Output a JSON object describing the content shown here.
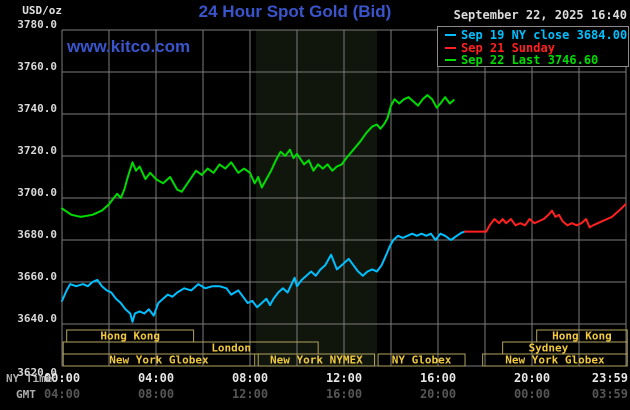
{
  "header": {
    "unit_label": "USD/oz",
    "title": "24 Hour Spot Gold (Bid)",
    "timestamp": "September 22, 2025 16:40",
    "watermark": "www.kitco.com"
  },
  "legend": {
    "items": [
      {
        "label": "Sep 19 NY close 3684.00",
        "color": "#00bfff"
      },
      {
        "label": "Sep 21 Sunday",
        "color": "#ff2020"
      },
      {
        "label": "Sep 22 Last 3746.60",
        "color": "#00dc00"
      }
    ]
  },
  "axes": {
    "y_tick_labels": [
      "3780.0",
      "3760.0",
      "3740.0",
      "3720.0",
      "3700.0",
      "3680.0",
      "3660.0",
      "3640.0",
      "3620.0"
    ],
    "ny_row_caption": "NY Time",
    "gmt_row_caption": "GMT",
    "x_ticks": [
      {
        "hour": 0,
        "ny": "00:00",
        "gmt": "04:00"
      },
      {
        "hour": 4,
        "ny": "04:00",
        "gmt": "08:00"
      },
      {
        "hour": 8,
        "ny": "08:00",
        "gmt": "12:00"
      },
      {
        "hour": 12,
        "ny": "12:00",
        "gmt": "16:00"
      },
      {
        "hour": 16,
        "ny": "16:00",
        "gmt": "20:00"
      },
      {
        "hour": 20,
        "ny": "20:00",
        "gmt": "00:00"
      },
      {
        "hour": 23.983,
        "ny": "23:59",
        "gmt": "03:59"
      }
    ]
  },
  "sessions": {
    "text_color": "#f0c93e",
    "border_color": "#b3a35e",
    "rows": [
      {
        "boxes": [
          {
            "label": "Hong Kong",
            "start_h": 0.2,
            "end_h": 5.6
          },
          {
            "label": "Hong Kong",
            "start_h": 20.2,
            "end_h": 24.05
          }
        ]
      },
      {
        "boxes": [
          {
            "label": "London",
            "start_h": 0.05,
            "end_h": 10.9,
            "label_h": 7.2
          },
          {
            "label": "Sydney",
            "start_h": 18.75,
            "end_h": 24.05,
            "label_h": 20.7
          }
        ]
      },
      {
        "boxes": [
          {
            "label": "New York Globex",
            "start_h": 0.05,
            "end_h": 8.2
          },
          {
            "label": "New York NYMEX",
            "start_h": 8.35,
            "end_h": 13.3
          },
          {
            "label": "NY Globex",
            "start_h": 13.45,
            "end_h": 17.15
          },
          {
            "label": "New York Globex",
            "start_h": 17.9,
            "end_h": 24.05
          }
        ]
      }
    ]
  },
  "chart_data": {
    "type": "line",
    "title": "24 Hour Spot Gold (Bid)",
    "ylabel": "USD/oz",
    "xlabel": "NY Time (hours)",
    "ylim": [
      3620,
      3780
    ],
    "y_tick_step": 20,
    "xlim_hours": [
      0,
      24
    ],
    "x_gridline_step_hours": 2,
    "grid": true,
    "gridline_color": "#7b7b7b",
    "background_color": "#000000",
    "nymex_highlight_band": {
      "start_h": 8.25,
      "end_h": 13.4,
      "color": "#11160d"
    },
    "series": [
      {
        "name": "Sep 19 NY close 3684.00",
        "color": "#00bfff",
        "points": [
          [
            0,
            3651
          ],
          [
            0.2,
            3656
          ],
          [
            0.35,
            3659
          ],
          [
            0.6,
            3658
          ],
          [
            0.9,
            3659
          ],
          [
            1.1,
            3658
          ],
          [
            1.3,
            3660
          ],
          [
            1.5,
            3661
          ],
          [
            1.7,
            3658
          ],
          [
            1.9,
            3656
          ],
          [
            2.1,
            3655
          ],
          [
            2.3,
            3652
          ],
          [
            2.5,
            3650
          ],
          [
            2.7,
            3647
          ],
          [
            2.9,
            3645
          ],
          [
            3.0,
            3641
          ],
          [
            3.1,
            3645
          ],
          [
            3.3,
            3646
          ],
          [
            3.5,
            3645
          ],
          [
            3.7,
            3647
          ],
          [
            3.9,
            3644
          ],
          [
            4.1,
            3650
          ],
          [
            4.3,
            3652
          ],
          [
            4.5,
            3654
          ],
          [
            4.7,
            3653
          ],
          [
            4.9,
            3655
          ],
          [
            5.2,
            3657
          ],
          [
            5.5,
            3656
          ],
          [
            5.8,
            3659
          ],
          [
            6.1,
            3657
          ],
          [
            6.4,
            3658
          ],
          [
            6.7,
            3658
          ],
          [
            7.0,
            3657
          ],
          [
            7.2,
            3654
          ],
          [
            7.5,
            3656
          ],
          [
            7.7,
            3653
          ],
          [
            7.9,
            3650
          ],
          [
            8.1,
            3651
          ],
          [
            8.3,
            3648
          ],
          [
            8.5,
            3650
          ],
          [
            8.7,
            3652
          ],
          [
            8.85,
            3649
          ],
          [
            9.0,
            3652
          ],
          [
            9.2,
            3655
          ],
          [
            9.4,
            3657
          ],
          [
            9.6,
            3655
          ],
          [
            9.9,
            3662
          ],
          [
            10.0,
            3658
          ],
          [
            10.2,
            3661
          ],
          [
            10.4,
            3663
          ],
          [
            10.6,
            3665
          ],
          [
            10.8,
            3663
          ],
          [
            11.0,
            3666
          ],
          [
            11.2,
            3668
          ],
          [
            11.45,
            3673
          ],
          [
            11.7,
            3666
          ],
          [
            11.9,
            3668
          ],
          [
            12.2,
            3671
          ],
          [
            12.4,
            3668
          ],
          [
            12.6,
            3665
          ],
          [
            12.8,
            3663
          ],
          [
            13.0,
            3665
          ],
          [
            13.2,
            3666
          ],
          [
            13.4,
            3665
          ],
          [
            13.6,
            3668
          ],
          [
            13.8,
            3673
          ],
          [
            13.95,
            3677
          ],
          [
            14.1,
            3680
          ],
          [
            14.3,
            3682
          ],
          [
            14.5,
            3681
          ],
          [
            14.7,
            3682
          ],
          [
            14.9,
            3683
          ],
          [
            15.1,
            3682
          ],
          [
            15.3,
            3683
          ],
          [
            15.5,
            3682
          ],
          [
            15.7,
            3683
          ],
          [
            15.9,
            3680
          ],
          [
            16.1,
            3683
          ],
          [
            16.3,
            3682
          ],
          [
            16.55,
            3680
          ],
          [
            16.8,
            3682
          ],
          [
            17.0,
            3683.5
          ],
          [
            17.15,
            3684
          ]
        ]
      },
      {
        "name": "Sep 21 Sunday",
        "color": "#ff2020",
        "points": [
          [
            17.15,
            3684
          ],
          [
            18.05,
            3684
          ],
          [
            18.2,
            3687
          ],
          [
            18.4,
            3690
          ],
          [
            18.6,
            3688
          ],
          [
            18.75,
            3690
          ],
          [
            18.9,
            3688
          ],
          [
            19.1,
            3690
          ],
          [
            19.3,
            3687
          ],
          [
            19.5,
            3688
          ],
          [
            19.7,
            3687
          ],
          [
            19.9,
            3690
          ],
          [
            20.1,
            3688
          ],
          [
            20.3,
            3689
          ],
          [
            20.5,
            3690
          ],
          [
            20.7,
            3692
          ],
          [
            20.85,
            3694
          ],
          [
            21.0,
            3691
          ],
          [
            21.15,
            3692
          ],
          [
            21.3,
            3689
          ],
          [
            21.5,
            3687
          ],
          [
            21.7,
            3688
          ],
          [
            21.9,
            3687
          ],
          [
            22.1,
            3688
          ],
          [
            22.3,
            3690
          ],
          [
            22.45,
            3686
          ],
          [
            22.6,
            3687
          ],
          [
            22.8,
            3688
          ],
          [
            23.0,
            3689
          ],
          [
            23.2,
            3690
          ],
          [
            23.4,
            3691
          ],
          [
            23.6,
            3693
          ],
          [
            23.8,
            3695
          ],
          [
            23.98,
            3697
          ]
        ]
      },
      {
        "name": "Sep 22 Last 3746.60",
        "color": "#00dc00",
        "points": [
          [
            0,
            3695
          ],
          [
            0.4,
            3692
          ],
          [
            0.8,
            3691
          ],
          [
            1.3,
            3692
          ],
          [
            1.7,
            3694
          ],
          [
            2.0,
            3697
          ],
          [
            2.2,
            3700
          ],
          [
            2.35,
            3702
          ],
          [
            2.5,
            3700
          ],
          [
            2.65,
            3704
          ],
          [
            2.8,
            3710
          ],
          [
            3.0,
            3717
          ],
          [
            3.15,
            3713
          ],
          [
            3.3,
            3715
          ],
          [
            3.55,
            3709
          ],
          [
            3.75,
            3712
          ],
          [
            4.0,
            3709
          ],
          [
            4.3,
            3707
          ],
          [
            4.6,
            3710
          ],
          [
            4.9,
            3704
          ],
          [
            5.1,
            3703
          ],
          [
            5.4,
            3708
          ],
          [
            5.7,
            3713
          ],
          [
            5.95,
            3711
          ],
          [
            6.2,
            3714
          ],
          [
            6.45,
            3712
          ],
          [
            6.7,
            3716
          ],
          [
            6.95,
            3714
          ],
          [
            7.2,
            3717
          ],
          [
            7.5,
            3712
          ],
          [
            7.75,
            3714
          ],
          [
            8.0,
            3712
          ],
          [
            8.2,
            3707
          ],
          [
            8.35,
            3710
          ],
          [
            8.5,
            3705
          ],
          [
            8.7,
            3709
          ],
          [
            8.9,
            3713
          ],
          [
            9.1,
            3718
          ],
          [
            9.3,
            3722
          ],
          [
            9.5,
            3720
          ],
          [
            9.7,
            3723
          ],
          [
            9.85,
            3719
          ],
          [
            10.0,
            3721
          ],
          [
            10.3,
            3716
          ],
          [
            10.5,
            3718
          ],
          [
            10.7,
            3713
          ],
          [
            10.9,
            3716
          ],
          [
            11.1,
            3714
          ],
          [
            11.3,
            3716
          ],
          [
            11.5,
            3713
          ],
          [
            11.7,
            3715
          ],
          [
            11.9,
            3716
          ],
          [
            12.1,
            3719
          ],
          [
            12.4,
            3723
          ],
          [
            12.7,
            3727
          ],
          [
            12.95,
            3731
          ],
          [
            13.2,
            3734
          ],
          [
            13.4,
            3735
          ],
          [
            13.55,
            3733
          ],
          [
            13.7,
            3735
          ],
          [
            13.85,
            3738
          ],
          [
            14.0,
            3744
          ],
          [
            14.15,
            3747
          ],
          [
            14.35,
            3745
          ],
          [
            14.55,
            3747
          ],
          [
            14.75,
            3748
          ],
          [
            14.95,
            3746
          ],
          [
            15.15,
            3744
          ],
          [
            15.35,
            3747
          ],
          [
            15.55,
            3749
          ],
          [
            15.75,
            3747
          ],
          [
            15.95,
            3743
          ],
          [
            16.1,
            3745
          ],
          [
            16.3,
            3748
          ],
          [
            16.5,
            3745
          ],
          [
            16.67,
            3746.6
          ]
        ]
      }
    ]
  }
}
